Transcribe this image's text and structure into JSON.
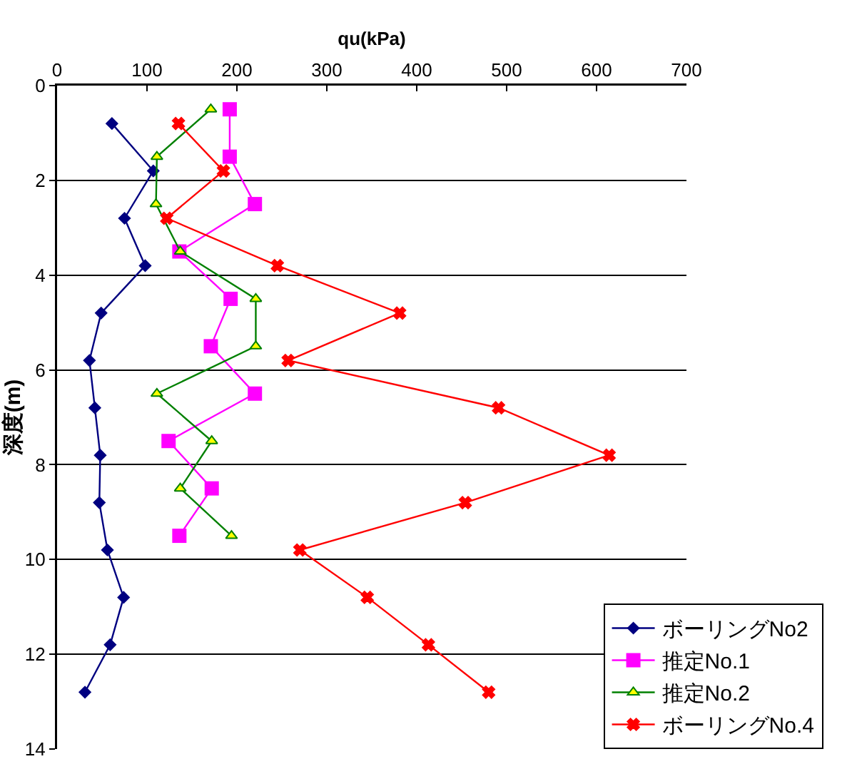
{
  "chart_data": {
    "type": "line",
    "xlabel": "qu(kPa)",
    "ylabel": "深度(m)",
    "xlim": [
      0,
      700
    ],
    "xticks": [
      0,
      100,
      200,
      300,
      400,
      500,
      600,
      700
    ],
    "ylim": [
      14,
      0
    ],
    "yticks": [
      0,
      2,
      4,
      6,
      8,
      10,
      12,
      14
    ],
    "grid": "y",
    "legend": "bottom right",
    "line_style": "solid",
    "series": [
      {
        "name": "ボーリングNo2",
        "color": "#000080",
        "marker": "diamond",
        "x": [
          61,
          107,
          75,
          98,
          49,
          36,
          42,
          48,
          47,
          56,
          74,
          59,
          31
        ],
        "values": [
          0.8,
          1.8,
          2.8,
          3.8,
          4.8,
          5.8,
          6.8,
          7.8,
          8.8,
          9.8,
          10.8,
          11.8,
          12.8
        ]
      },
      {
        "name": "推定No.1",
        "color": "#ff00ff",
        "marker": "square",
        "x": [
          192,
          192,
          220,
          136,
          193,
          171,
          220,
          124,
          172,
          136
        ],
        "values": [
          0.5,
          1.5,
          2.5,
          3.5,
          4.5,
          5.5,
          6.5,
          7.5,
          8.5,
          9.5
        ]
      },
      {
        "name": "推定No.2",
        "color": "#008000",
        "marker": "triangle",
        "x": [
          171,
          111,
          110,
          137,
          221,
          221,
          111,
          172,
          137,
          194
        ],
        "values": [
          0.5,
          1.5,
          2.5,
          3.5,
          4.5,
          5.5,
          6.5,
          7.5,
          8.5,
          9.5
        ]
      },
      {
        "name": "ボーリングNo.4",
        "color": "#ff0000",
        "marker": "cross",
        "x": [
          135,
          185,
          122,
          245,
          381,
          257,
          491,
          614,
          454,
          270,
          345,
          413,
          480
        ],
        "values": [
          0.8,
          1.8,
          2.8,
          3.8,
          4.8,
          5.8,
          6.8,
          7.8,
          8.8,
          9.8,
          10.8,
          11.8,
          12.8
        ]
      }
    ]
  }
}
